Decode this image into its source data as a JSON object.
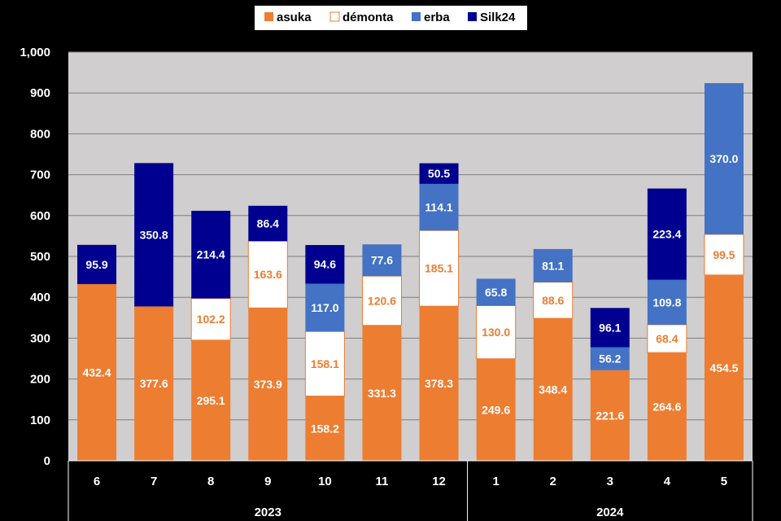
{
  "chart_data": {
    "type": "bar",
    "stacked": true,
    "title": "",
    "xlabel": "",
    "ylabel": "",
    "ylim": [
      0,
      1000
    ],
    "yticks": [
      "0",
      "100",
      "200",
      "300",
      "400",
      "500",
      "600",
      "700",
      "800",
      "900",
      "1,000"
    ],
    "grid": true,
    "legend_position": "top",
    "categories": [
      "6",
      "7",
      "8",
      "9",
      "10",
      "11",
      "12",
      "1",
      "2",
      "3",
      "4",
      "5"
    ],
    "groups": [
      {
        "label": "2023",
        "months": 7
      },
      {
        "label": "2024",
        "months": 5
      }
    ],
    "series": [
      {
        "name": "asuka",
        "color": "#ED7D31",
        "label_color": "#ffffff",
        "values": [
          432.4,
          377.6,
          295.1,
          373.9,
          158.2,
          331.3,
          378.3,
          249.6,
          348.4,
          221.6,
          264.6,
          454.5
        ]
      },
      {
        "name": "démonta",
        "color": "#ffffff",
        "border": "#ED7D31",
        "label_color": "#ED7D31",
        "values": [
          null,
          null,
          102.2,
          163.6,
          158.1,
          120.6,
          185.1,
          130.0,
          88.6,
          null,
          68.4,
          99.5
        ]
      },
      {
        "name": "erba",
        "color": "#4472C4",
        "label_color": "#ffffff",
        "values": [
          null,
          null,
          null,
          null,
          117.0,
          77.6,
          114.1,
          65.8,
          81.1,
          56.2,
          109.8,
          370.0
        ]
      },
      {
        "name": "Silk24",
        "color": "#000090",
        "label_color": "#ffffff",
        "values": [
          95.9,
          350.8,
          214.4,
          86.4,
          94.6,
          null,
          50.5,
          null,
          null,
          96.1,
          223.4,
          null
        ]
      }
    ],
    "plot_background": "#D0CECE",
    "gridline_color": "#7f7f7f"
  }
}
